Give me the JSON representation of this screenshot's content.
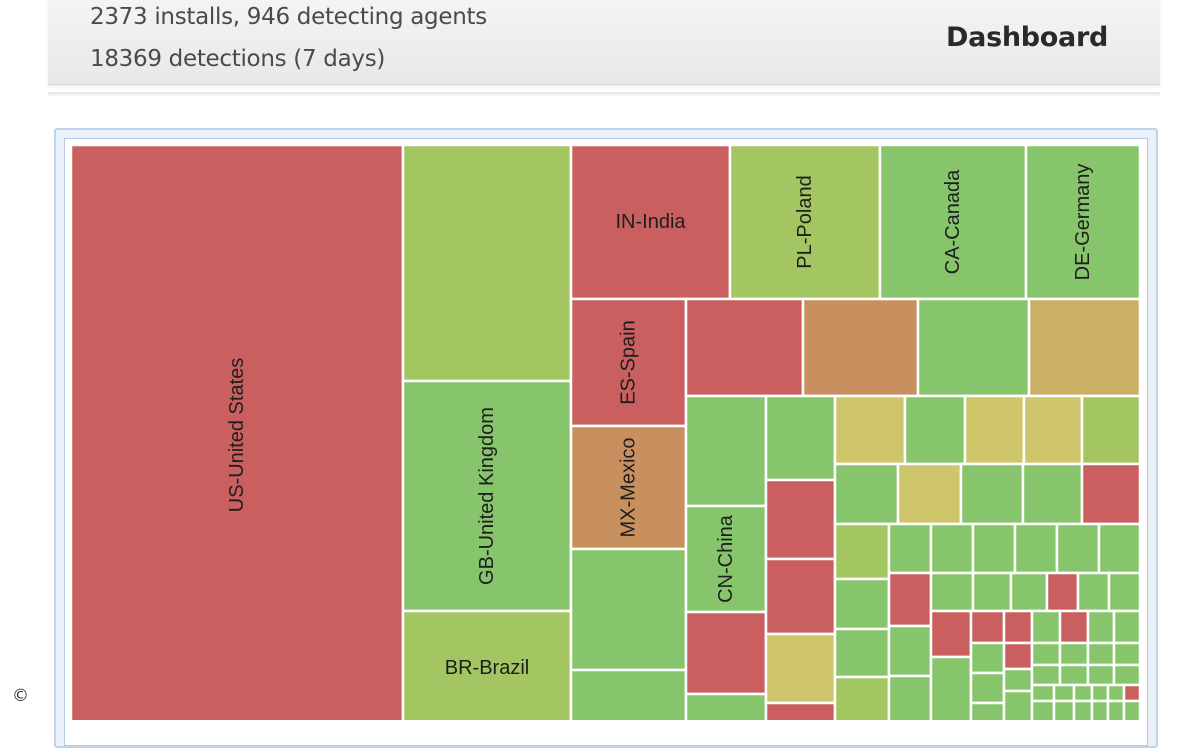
{
  "header": {
    "installs_line": "2373 installs, 946 detecting agents",
    "detections_line": "18369 detections (7 days)",
    "dashboard_link": "Dashboard"
  },
  "footer": {
    "copyright_symbol": "©"
  },
  "treemap": {
    "colors": {
      "red": "#c95f5f",
      "green": "#86c56b",
      "lightgreen": "#a4c662",
      "olive": "#cfc66c",
      "orange": "#c9905f",
      "tan": "#c9b064"
    },
    "labeled_cells": [
      {
        "label": "US-United States"
      },
      {
        "label": "GB-United Kingdom"
      },
      {
        "label": "BR-Brazil"
      },
      {
        "label": "IN-India"
      },
      {
        "label": "PL-Poland"
      },
      {
        "label": "CA-Canada"
      },
      {
        "label": "DE-Germany"
      },
      {
        "label": "ES-Spain"
      },
      {
        "label": "MX-Mexico"
      },
      {
        "label": "CN-China"
      }
    ]
  }
}
